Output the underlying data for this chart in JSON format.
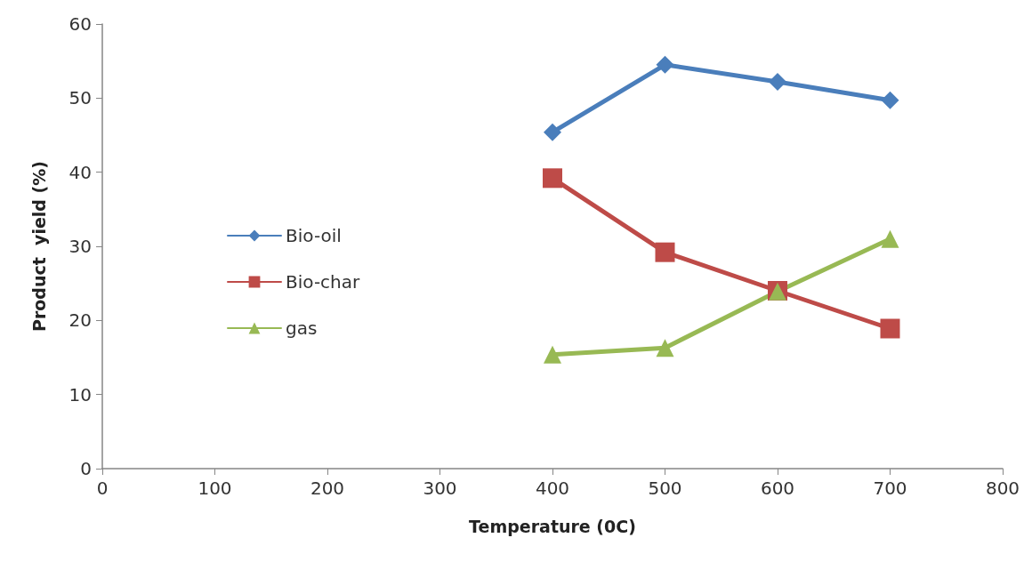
{
  "chart_data": {
    "type": "line",
    "xlabel": "Temperature (0C)",
    "ylabel": "Product  yield (%)",
    "x": [
      400,
      500,
      600,
      700
    ],
    "series": [
      {
        "name": "Bio-oil",
        "color": "#4a7ebb",
        "marker": "diamond",
        "values": [
          45.4,
          54.5,
          52.2,
          49.7
        ]
      },
      {
        "name": "Bio-char",
        "color": "#be4b48",
        "marker": "square",
        "values": [
          39.2,
          29.2,
          24.0,
          18.9
        ]
      },
      {
        "name": "gas",
        "color": "#98b954",
        "marker": "triangle",
        "values": [
          15.4,
          16.3,
          23.9,
          31.0
        ]
      }
    ],
    "xlim": [
      0,
      800
    ],
    "xticks": [
      0,
      100,
      200,
      300,
      400,
      500,
      600,
      700,
      800
    ],
    "ylim": [
      0,
      60
    ],
    "yticks": [
      0,
      10,
      20,
      30,
      40,
      50,
      60
    ],
    "grid": false,
    "legend": "left",
    "line_style": "solid"
  }
}
